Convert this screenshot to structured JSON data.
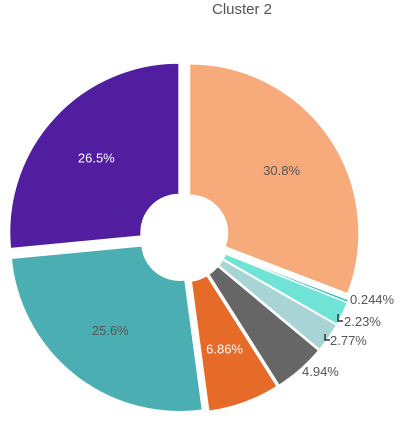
{
  "chart_data": {
    "type": "pie",
    "title": "Cluster 2",
    "donut": true,
    "slices_exploded": true,
    "slices": [
      {
        "label": "30.8%",
        "value": 30.8,
        "color": "#f7aa7a"
      },
      {
        "label": "0.244%",
        "value": 0.244,
        "color": "#2fc5b4"
      },
      {
        "label": "2.23%",
        "value": 2.23,
        "color": "#6fe4d6"
      },
      {
        "label": "2.77%",
        "value": 2.77,
        "color": "#a8d4d6"
      },
      {
        "label": "4.94%",
        "value": 4.94,
        "color": "#666666"
      },
      {
        "label": "6.86%",
        "value": 6.86,
        "color": "#e66a28"
      },
      {
        "label": "25.6%",
        "value": 25.6,
        "color": "#4aaeb2"
      },
      {
        "label": "26.5%",
        "value": 26.5,
        "color": "#521ea0"
      }
    ]
  }
}
